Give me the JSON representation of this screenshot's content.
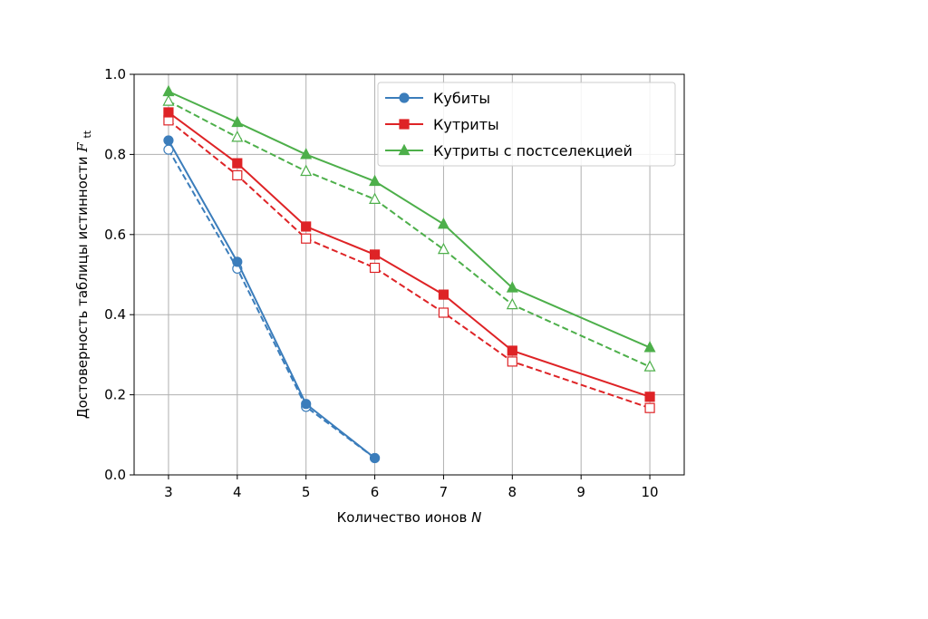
{
  "chart_data": {
    "type": "line",
    "xlabel": "Количество ионов",
    "xlabel_var": "N",
    "ylabel": "Достоверность таблицы истинности",
    "ylabel_var": "F",
    "ylabel_sub": "tt",
    "xlim": [
      2.5,
      10.5
    ],
    "ylim": [
      0.0,
      1.0
    ],
    "xticks": [
      3,
      4,
      5,
      6,
      7,
      8,
      9,
      10
    ],
    "yticks": [
      0.0,
      0.2,
      0.4,
      0.6,
      0.8,
      1.0
    ],
    "xtick_labels": [
      "3",
      "4",
      "5",
      "6",
      "7",
      "8",
      "9",
      "10"
    ],
    "ytick_labels": [
      "0.0",
      "0.2",
      "0.4",
      "0.6",
      "0.8",
      "1.0"
    ],
    "grid": true,
    "legend_position": "top-right",
    "series": [
      {
        "name": "Кубиты",
        "color": "#3b7dbb",
        "marker": "circle",
        "style": "solid",
        "filled": true,
        "x": [
          3,
          4,
          5,
          6
        ],
        "y": [
          0.835,
          0.532,
          0.177,
          0.042
        ]
      },
      {
        "name": "Кутриты",
        "color": "#de2326",
        "marker": "square",
        "style": "solid",
        "filled": true,
        "x": [
          3,
          4,
          5,
          6,
          7,
          8,
          10
        ],
        "y": [
          0.905,
          0.778,
          0.62,
          0.55,
          0.45,
          0.31,
          0.195
        ]
      },
      {
        "name": "Кутриты с постселекцией",
        "color": "#4daf4a",
        "marker": "triangle",
        "style": "solid",
        "filled": true,
        "x": [
          3,
          4,
          5,
          6,
          7,
          8,
          10
        ],
        "y": [
          0.957,
          0.88,
          0.8,
          0.733,
          0.626,
          0.467,
          0.318
        ]
      },
      {
        "color": "#3b7dbb",
        "marker": "circle",
        "style": "dashed",
        "filled": false,
        "x": [
          3,
          4,
          5,
          6
        ],
        "y": [
          0.812,
          0.515,
          0.17,
          0.042
        ]
      },
      {
        "color": "#de2326",
        "marker": "square",
        "style": "dashed",
        "filled": false,
        "x": [
          3,
          4,
          5,
          6,
          7,
          8,
          10
        ],
        "y": [
          0.885,
          0.748,
          0.59,
          0.517,
          0.405,
          0.283,
          0.167
        ]
      },
      {
        "color": "#4daf4a",
        "marker": "triangle",
        "style": "dashed",
        "filled": false,
        "x": [
          3,
          4,
          5,
          6,
          7,
          8,
          10
        ],
        "y": [
          0.933,
          0.843,
          0.758,
          0.688,
          0.563,
          0.425,
          0.27
        ]
      }
    ]
  }
}
